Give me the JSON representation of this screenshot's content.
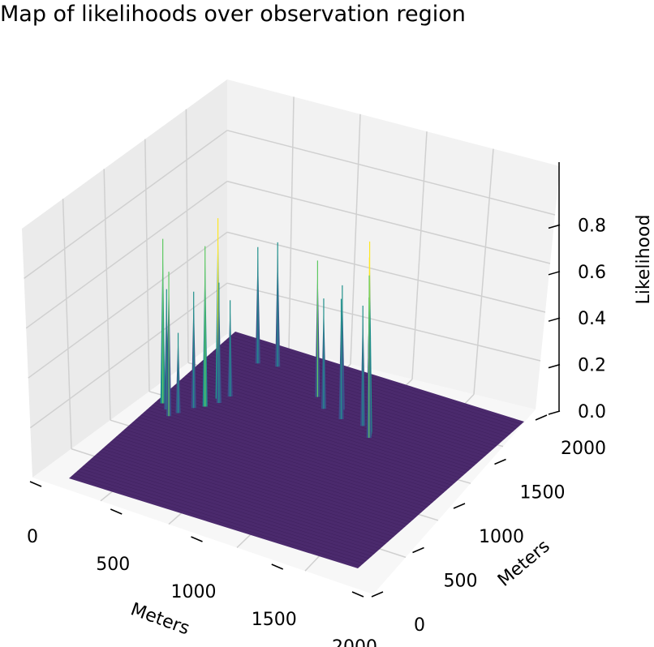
{
  "chart_data": {
    "type": "surface3d",
    "title": "Map of likelihoods over observation region",
    "xlabel": "Meters",
    "ylabel": "Meters",
    "zlabel": "Likelihood",
    "xlim": [
      0,
      2000
    ],
    "ylim": [
      0,
      2000
    ],
    "zlim": [
      0,
      0.95
    ],
    "xticks": [
      "0",
      "500",
      "1000",
      "1500",
      "2000"
    ],
    "yticks": [
      "0",
      "500",
      "1000",
      "1500",
      "2000"
    ],
    "zticks": [
      "0.0",
      "0.2",
      "0.4",
      "0.6",
      "0.8"
    ],
    "grid": true,
    "colormap": "viridis",
    "colormap_stops": [
      "#440154",
      "#3b528b",
      "#21918c",
      "#5ec962",
      "#fde725"
    ],
    "base_color": "#4b2a6d",
    "peaks": [
      {
        "x": 45,
        "y": 1050,
        "z": 0.82
      },
      {
        "x": 100,
        "y": 1000,
        "z": 0.6
      },
      {
        "x": 150,
        "y": 940,
        "z": 0.72
      },
      {
        "x": 180,
        "y": 1000,
        "z": 0.4
      },
      {
        "x": 230,
        "y": 1100,
        "z": 0.58
      },
      {
        "x": 280,
        "y": 1150,
        "z": 0.8
      },
      {
        "x": 300,
        "y": 1270,
        "z": 0.9
      },
      {
        "x": 330,
        "y": 1230,
        "z": 0.6
      },
      {
        "x": 350,
        "y": 1330,
        "z": 0.48
      },
      {
        "x": 300,
        "y": 1750,
        "z": 0.58
      },
      {
        "x": 420,
        "y": 1780,
        "z": 0.62
      },
      {
        "x": 800,
        "y": 1600,
        "z": 0.68
      },
      {
        "x": 900,
        "y": 1500,
        "z": 0.55
      },
      {
        "x": 1000,
        "y": 1550,
        "z": 0.62
      },
      {
        "x": 1050,
        "y": 1450,
        "z": 0.6
      },
      {
        "x": 1200,
        "y": 1450,
        "z": 0.6
      },
      {
        "x": 1270,
        "y": 1410,
        "z": 0.95
      },
      {
        "x": 1280,
        "y": 1390,
        "z": 0.88
      },
      {
        "x": 1290,
        "y": 1370,
        "z": 0.8
      },
      {
        "x": 1300,
        "y": 1350,
        "z": 0.7
      }
    ]
  }
}
